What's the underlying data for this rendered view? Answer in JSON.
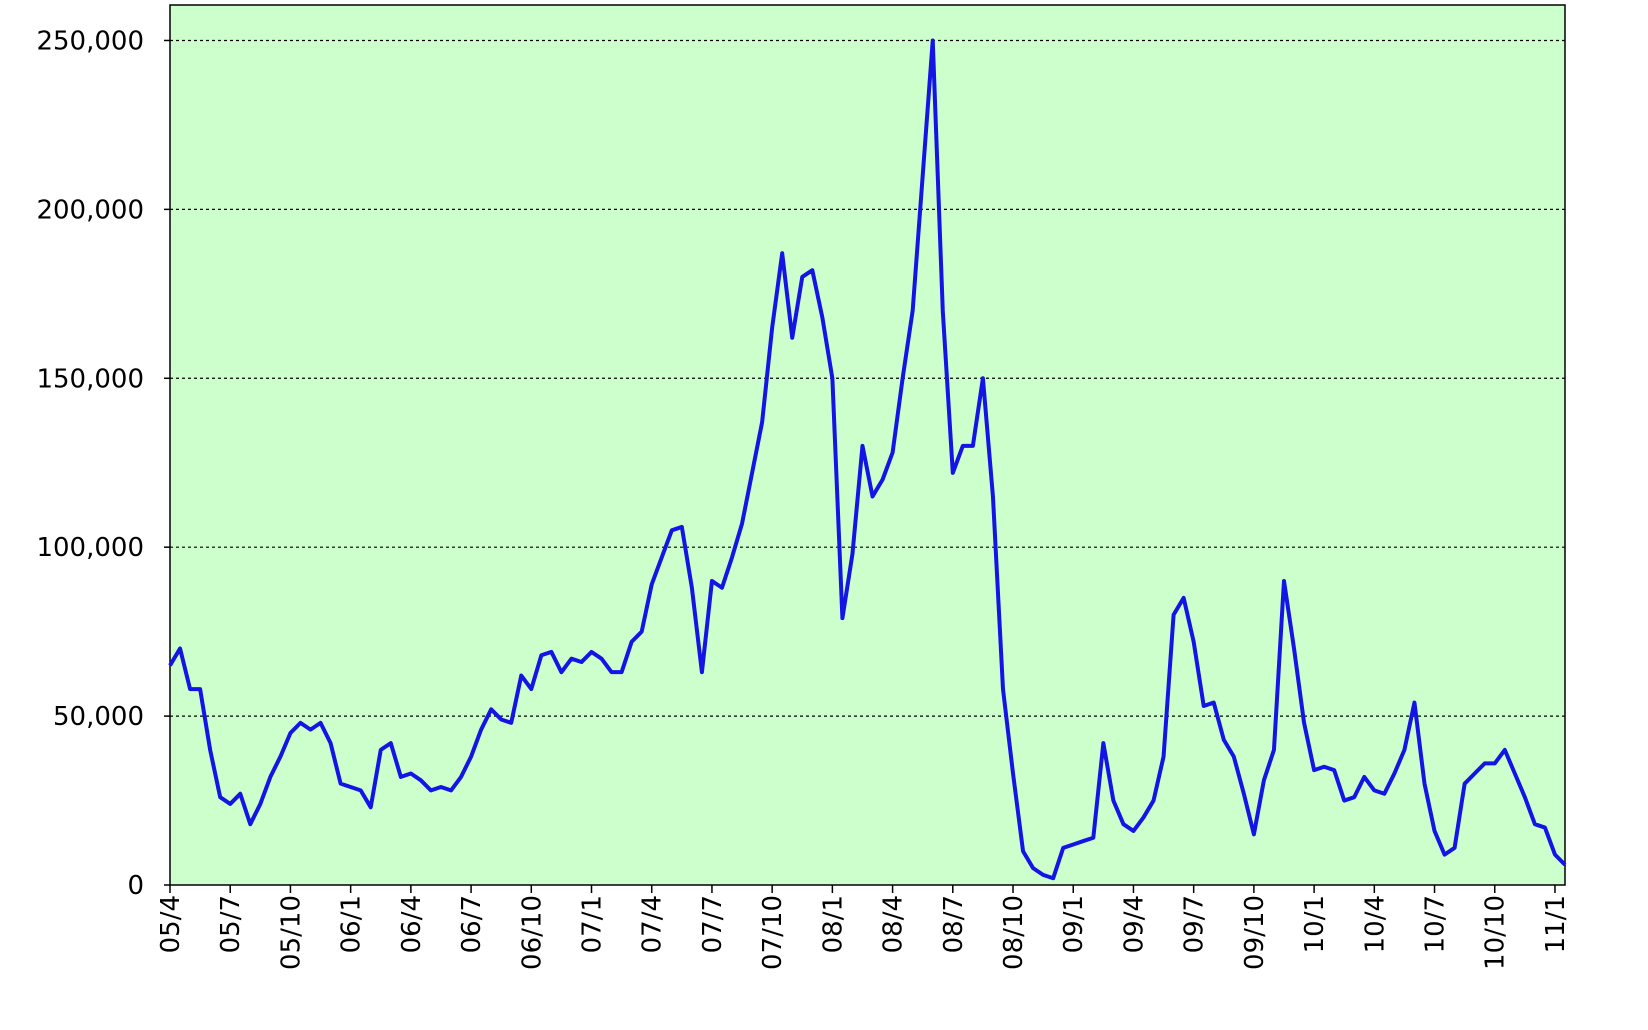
{
  "chart_data": {
    "type": "line",
    "categories": [
      "05/4",
      null,
      null,
      null,
      null,
      null,
      "05/7",
      null,
      null,
      null,
      null,
      null,
      "05/10",
      null,
      null,
      null,
      null,
      null,
      "06/1",
      null,
      null,
      null,
      null,
      null,
      "06/4",
      null,
      null,
      null,
      null,
      null,
      "06/7",
      null,
      null,
      null,
      null,
      null,
      "06/10",
      null,
      null,
      null,
      null,
      null,
      "07/1",
      null,
      null,
      null,
      null,
      null,
      "07/4",
      null,
      null,
      null,
      null,
      null,
      "07/7",
      null,
      null,
      null,
      null,
      null,
      "07/10",
      null,
      null,
      null,
      null,
      null,
      "08/1",
      null,
      null,
      null,
      null,
      null,
      "08/4",
      null,
      null,
      null,
      null,
      null,
      "08/7",
      null,
      null,
      null,
      null,
      null,
      "08/10",
      null,
      null,
      null,
      null,
      null,
      "09/1",
      null,
      null,
      null,
      null,
      null,
      "09/4",
      null,
      null,
      null,
      null,
      null,
      "09/7",
      null,
      null,
      null,
      null,
      null,
      "09/10",
      null,
      null,
      null,
      null,
      null,
      "10/1",
      null,
      null,
      null,
      null,
      null,
      "10/4",
      null,
      null,
      null,
      null,
      null,
      "10/7",
      null,
      null,
      null,
      null,
      null,
      "10/10",
      null,
      null,
      null,
      null,
      null,
      "11/1",
      null
    ],
    "series": [
      {
        "color": "#1414e6",
        "values": [
          65000,
          70000,
          58000,
          58000,
          40000,
          26000,
          24000,
          27000,
          18000,
          24000,
          32000,
          38000,
          45000,
          48000,
          46000,
          48000,
          42000,
          30000,
          29000,
          28000,
          23000,
          40000,
          42000,
          32000,
          33000,
          31000,
          28000,
          29000,
          28000,
          32000,
          38000,
          46000,
          52000,
          49000,
          48000,
          62000,
          58000,
          68000,
          69000,
          63000,
          67000,
          66000,
          69000,
          67000,
          63000,
          63000,
          72000,
          75000,
          89000,
          97000,
          105000,
          106000,
          88000,
          63000,
          90000,
          88000,
          97000,
          107000,
          122000,
          137000,
          165000,
          187000,
          162000,
          180000,
          182000,
          168000,
          150000,
          79000,
          98000,
          130000,
          115000,
          120000,
          128000,
          150000,
          170000,
          210000,
          250000,
          170000,
          122000,
          130000,
          130000,
          150000,
          115000,
          58000,
          33000,
          10000,
          5000,
          3000,
          2000,
          11000,
          12000,
          13000,
          14000,
          42000,
          25000,
          18000,
          16000,
          20000,
          25000,
          38000,
          80000,
          85000,
          72000,
          53000,
          54000,
          43000,
          38000,
          27000,
          15000,
          31000,
          40000,
          90000,
          70000,
          48000,
          34000,
          35000,
          34000,
          25000,
          26000,
          32000,
          28000,
          27000,
          33000,
          40000,
          54000,
          30000,
          16000,
          9000,
          11000,
          30000,
          33000,
          36000,
          36000,
          40000,
          33000,
          26000,
          18000,
          17000,
          9000,
          6000
        ]
      }
    ],
    "ylim": [
      0,
      260500
    ],
    "yticks": [
      0,
      {
        "value": 50000,
        "label": "50,000"
      },
      {
        "value": 100000,
        "label": "100,000"
      },
      {
        "value": 150000,
        "label": "150,000"
      },
      {
        "value": 200000,
        "label": "200,000"
      },
      {
        "value": 250000,
        "label": "250,000"
      }
    ],
    "grid": true,
    "background": "#ccffcc"
  }
}
